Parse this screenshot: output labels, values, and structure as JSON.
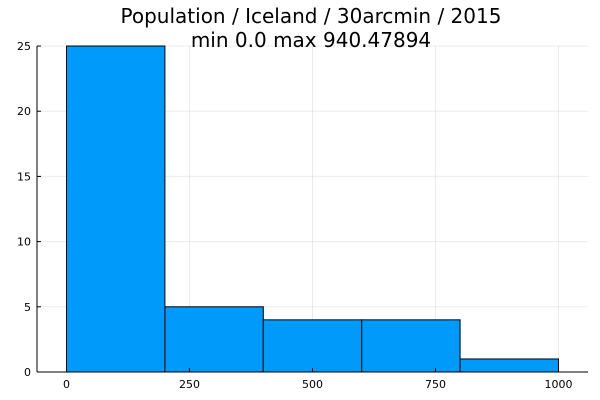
{
  "chart_data": {
    "type": "bar",
    "title": "Population / Iceland / 30arcmin / 2015",
    "subtitle": "min 0.0  max 940.47894",
    "xlabel": "",
    "ylabel": "",
    "bins": [
      {
        "start": 0,
        "end": 200,
        "count": 25
      },
      {
        "start": 200,
        "end": 400,
        "count": 5
      },
      {
        "start": 400,
        "end": 600,
        "count": 4
      },
      {
        "start": 600,
        "end": 800,
        "count": 4
      },
      {
        "start": 800,
        "end": 1000,
        "count": 1
      }
    ],
    "xlim": [
      -60,
      1060
    ],
    "ylim": [
      0,
      25
    ],
    "xticks": [
      0,
      250,
      500,
      750,
      1000
    ],
    "yticks": [
      0,
      5,
      10,
      15,
      20,
      25
    ],
    "grid": true,
    "legend": "none",
    "bar_color": "#009AFA"
  }
}
